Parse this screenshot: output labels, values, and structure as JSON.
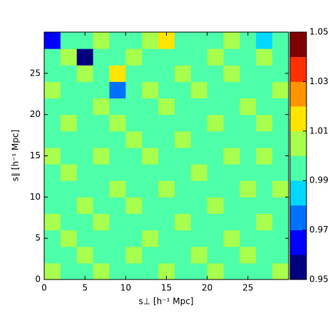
{
  "chart_data": {
    "type": "contourf",
    "xlabel": "s⊥ [h⁻¹ Mpc]",
    "ylabel": "s∥ [h⁻¹ Mpc]",
    "xlim": [
      0,
      30
    ],
    "ylim": [
      0,
      30
    ],
    "xticks": [
      0,
      5,
      10,
      15,
      20,
      25
    ],
    "yticks": [
      0,
      5,
      10,
      15,
      20,
      25
    ],
    "x": [
      1,
      3,
      5,
      7,
      9,
      11,
      13,
      15,
      17,
      19,
      21,
      23,
      25,
      27,
      29
    ],
    "y": [
      1,
      3,
      5,
      7,
      9,
      11,
      13,
      15,
      17,
      19,
      21,
      23,
      25,
      27,
      29
    ],
    "z": [
      [
        1.005,
        0.995,
        0.995,
        1.005,
        0.995,
        0.995,
        0.995,
        1.005,
        0.995,
        0.995,
        1.005,
        0.995,
        0.995,
        0.995,
        1.005
      ],
      [
        0.995,
        0.995,
        1.005,
        0.995,
        0.995,
        1.005,
        0.995,
        0.995,
        0.995,
        1.005,
        0.995,
        0.995,
        1.005,
        0.995,
        0.995
      ],
      [
        0.995,
        1.005,
        0.995,
        0.995,
        0.995,
        0.995,
        1.005,
        0.995,
        0.995,
        0.995,
        0.995,
        1.005,
        0.995,
        0.995,
        0.995
      ],
      [
        1.005,
        0.995,
        0.995,
        1.005,
        0.995,
        0.995,
        0.995,
        0.995,
        1.005,
        0.995,
        0.995,
        0.995,
        0.995,
        1.005,
        0.995
      ],
      [
        0.995,
        0.995,
        1.005,
        0.995,
        0.995,
        1.005,
        0.995,
        0.995,
        0.995,
        0.995,
        1.005,
        0.995,
        0.995,
        0.995,
        0.995
      ],
      [
        0.995,
        0.995,
        0.995,
        0.995,
        1.005,
        0.995,
        0.995,
        1.005,
        0.995,
        0.995,
        0.995,
        0.995,
        1.005,
        0.995,
        1.005
      ],
      [
        0.995,
        1.005,
        0.995,
        0.995,
        0.995,
        0.995,
        0.995,
        0.995,
        0.995,
        1.005,
        0.995,
        0.995,
        0.995,
        0.995,
        0.995
      ],
      [
        1.005,
        0.995,
        0.995,
        1.005,
        0.995,
        0.995,
        1.005,
        0.995,
        0.995,
        0.995,
        0.995,
        1.005,
        0.995,
        1.005,
        0.995
      ],
      [
        0.995,
        0.995,
        0.995,
        0.995,
        0.995,
        1.005,
        0.995,
        0.995,
        1.005,
        0.995,
        0.995,
        0.995,
        0.995,
        0.995,
        0.995
      ],
      [
        0.995,
        1.005,
        0.995,
        0.995,
        1.005,
        0.995,
        0.995,
        0.995,
        0.995,
        0.995,
        1.005,
        0.995,
        0.995,
        1.005,
        0.995
      ],
      [
        0.995,
        0.995,
        0.995,
        1.005,
        0.995,
        0.995,
        0.995,
        1.005,
        0.995,
        0.995,
        0.995,
        0.995,
        1.005,
        0.995,
        0.995
      ],
      [
        1.005,
        0.995,
        0.995,
        0.995,
        0.975,
        0.995,
        1.005,
        0.995,
        0.995,
        1.005,
        0.995,
        0.995,
        0.995,
        0.995,
        1.005
      ],
      [
        0.995,
        0.995,
        1.005,
        0.995,
        1.015,
        0.995,
        0.995,
        0.995,
        1.005,
        0.995,
        0.995,
        1.005,
        0.995,
        0.995,
        0.995
      ],
      [
        0.995,
        1.005,
        0.955,
        0.995,
        0.995,
        1.005,
        0.995,
        0.995,
        0.995,
        0.995,
        1.005,
        0.995,
        0.995,
        1.005,
        0.995
      ],
      [
        0.965,
        0.995,
        0.995,
        1.005,
        0.995,
        0.995,
        1.005,
        1.015,
        0.995,
        0.995,
        0.995,
        1.005,
        0.995,
        0.985,
        0.995
      ]
    ],
    "levels": [
      0.95,
      0.96,
      0.97,
      0.98,
      0.99,
      1.0,
      1.01,
      1.02,
      1.03,
      1.04,
      1.05
    ],
    "colors": [
      "#00007f",
      "#0000ff",
      "#0070ff",
      "#00d8ff",
      "#4dffa9",
      "#a9ff4d",
      "#ffe500",
      "#ff9400",
      "#ff3000",
      "#7f0000"
    ],
    "cbar_ticks": [
      0.95,
      0.97,
      0.99,
      1.01,
      1.03,
      1.05
    ]
  }
}
